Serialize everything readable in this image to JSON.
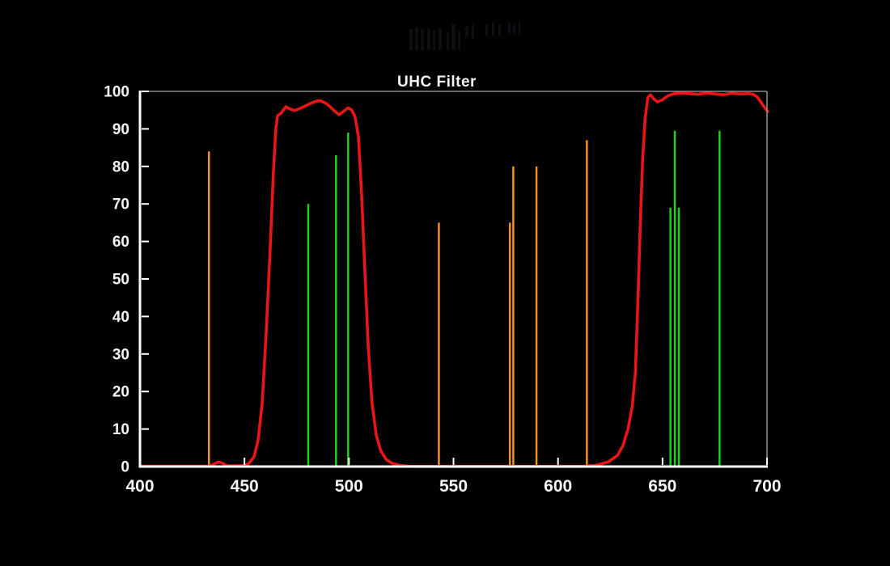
{
  "title": "UHC Filter",
  "chart_data": {
    "type": "line",
    "title": "UHC Filter",
    "xlabel": "",
    "ylabel": "",
    "x_unit": "wavelength (nm, implied)",
    "y_unit": "transmission % (implied)",
    "xlim": [
      400,
      700
    ],
    "ylim": [
      0,
      100
    ],
    "x_ticks": [
      400,
      450,
      500,
      550,
      600,
      650,
      700
    ],
    "y_ticks": [
      0,
      10,
      20,
      30,
      40,
      50,
      60,
      70,
      80,
      90,
      100
    ],
    "grid": false,
    "legend": false,
    "series": [
      {
        "name": "UHC filter transmission curve",
        "color": "#ea1616",
        "points": [
          [
            400,
            0.1
          ],
          [
            433.5,
            0.1
          ],
          [
            435.5,
            0.7
          ],
          [
            437.5,
            1.2
          ],
          [
            439.5,
            0.9
          ],
          [
            441.5,
            0.2
          ],
          [
            449.5,
            0.2
          ],
          [
            452,
            0.8
          ],
          [
            454.5,
            2.5
          ],
          [
            456.5,
            7
          ],
          [
            458.5,
            17
          ],
          [
            460.5,
            37
          ],
          [
            462.3,
            58
          ],
          [
            463.8,
            78
          ],
          [
            465,
            90
          ],
          [
            465.8,
            93.5
          ],
          [
            467.5,
            94.2
          ],
          [
            469.8,
            95.9
          ],
          [
            471.8,
            95.3
          ],
          [
            473.8,
            94.9
          ],
          [
            476,
            95.3
          ],
          [
            479,
            96.1
          ],
          [
            482,
            96.9
          ],
          [
            484.5,
            97.4
          ],
          [
            486.5,
            97.5
          ],
          [
            489,
            96.8
          ],
          [
            491.2,
            95.8
          ],
          [
            493.2,
            94.7
          ],
          [
            495.3,
            93.8
          ],
          [
            497.5,
            94.7
          ],
          [
            499.5,
            95.6
          ],
          [
            501.2,
            95.1
          ],
          [
            502.8,
            93.4
          ],
          [
            504.5,
            88
          ],
          [
            506,
            73
          ],
          [
            507.6,
            52
          ],
          [
            509.2,
            32
          ],
          [
            511,
            17
          ],
          [
            513,
            8.5
          ],
          [
            515.2,
            4.2
          ],
          [
            517.8,
            1.9
          ],
          [
            520.8,
            0.8
          ],
          [
            524.5,
            0.3
          ],
          [
            529,
            0.05
          ],
          [
            612,
            0.05
          ],
          [
            618,
            0.3
          ],
          [
            624,
            1.2
          ],
          [
            628.5,
            3
          ],
          [
            631,
            5.5
          ],
          [
            633.5,
            10
          ],
          [
            635.5,
            16
          ],
          [
            637,
            25
          ],
          [
            638.2,
            44
          ],
          [
            639.4,
            65
          ],
          [
            640.5,
            82
          ],
          [
            641.7,
            93
          ],
          [
            643,
            98.4
          ],
          [
            644.2,
            99.1
          ],
          [
            645.6,
            98.1
          ],
          [
            647.5,
            97.2
          ],
          [
            649.8,
            97.7
          ],
          [
            652.5,
            98.8
          ],
          [
            655.5,
            99.4
          ],
          [
            659,
            99.6
          ],
          [
            663,
            99.4
          ],
          [
            667,
            99.2
          ],
          [
            671,
            99.6
          ],
          [
            675,
            99.3
          ],
          [
            679,
            99.1
          ],
          [
            683,
            99.5
          ],
          [
            687,
            99.3
          ],
          [
            691,
            99.4
          ],
          [
            693.5,
            99.2
          ],
          [
            695.5,
            98.4
          ],
          [
            697.5,
            96.8
          ],
          [
            699,
            95.6
          ],
          [
            700.3,
            94.6
          ]
        ]
      }
    ],
    "emission_lines": [
      {
        "nm": 433,
        "percent": 84,
        "color": "orange"
      },
      {
        "nm": 480.5,
        "percent": 70,
        "color": "green"
      },
      {
        "nm": 493.8,
        "percent": 83,
        "color": "green"
      },
      {
        "nm": 499.6,
        "percent": 89,
        "color": "green"
      },
      {
        "nm": 543,
        "percent": 65,
        "color": "orange"
      },
      {
        "nm": 577,
        "percent": 65,
        "color": "orange"
      },
      {
        "nm": 578.6,
        "percent": 80,
        "color": "orange"
      },
      {
        "nm": 589.7,
        "percent": 80,
        "color": "orange"
      },
      {
        "nm": 613.8,
        "percent": 87,
        "color": "orange"
      },
      {
        "nm": 653.8,
        "percent": 69,
        "color": "green"
      },
      {
        "nm": 655.9,
        "percent": 89.5,
        "color": "green"
      },
      {
        "nm": 657.8,
        "percent": 69,
        "color": "green"
      },
      {
        "nm": 677.3,
        "percent": 89.5,
        "color": "green"
      }
    ],
    "colors": {
      "background": "#000000",
      "curve": "#ea1616",
      "orange_line": "#f0931c",
      "green_line": "#1ed11e",
      "axis": "#ffffff",
      "frame": "#8a8a8a",
      "text": "#f5f5f5"
    }
  },
  "watermark_marks": {
    "description": "faint dark artifact marks above the plot",
    "fill": "#0e0e13",
    "bars": [
      [
        506,
        36,
        4,
        26
      ],
      [
        513,
        34,
        4,
        28
      ],
      [
        520,
        36,
        4,
        26
      ],
      [
        528,
        35,
        4,
        27
      ],
      [
        535,
        37,
        3,
        25
      ],
      [
        542,
        35,
        4,
        27
      ],
      [
        552,
        40,
        3,
        22
      ],
      [
        558,
        30,
        5,
        32
      ],
      [
        566,
        38,
        3,
        24
      ],
      [
        575,
        33,
        4,
        12
      ],
      [
        583,
        30,
        3,
        18
      ],
      [
        600,
        30,
        3,
        14
      ],
      [
        608,
        28,
        3,
        16
      ],
      [
        616,
        30,
        3,
        14
      ],
      [
        628,
        27,
        3,
        15
      ],
      [
        634,
        29,
        3,
        13
      ],
      [
        641,
        27,
        2,
        15
      ]
    ]
  }
}
